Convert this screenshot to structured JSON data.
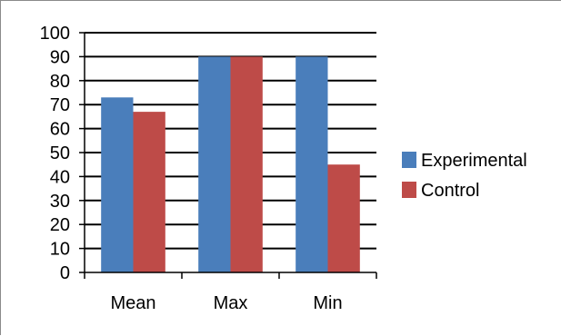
{
  "chart_data": {
    "type": "bar",
    "categories": [
      "Mean",
      "Max",
      "Min"
    ],
    "series": [
      {
        "name": "Experimental",
        "values": [
          73,
          90,
          90
        ],
        "color": "#4a7ebb"
      },
      {
        "name": "Control",
        "values": [
          67,
          90,
          45
        ],
        "color": "#be4b48"
      }
    ],
    "ylim": [
      0,
      100
    ],
    "yticks": [
      0,
      10,
      20,
      30,
      40,
      50,
      60,
      70,
      80,
      90,
      100
    ],
    "grid": true,
    "legend_position": "right",
    "title": "",
    "xlabel": "",
    "ylabel": ""
  }
}
